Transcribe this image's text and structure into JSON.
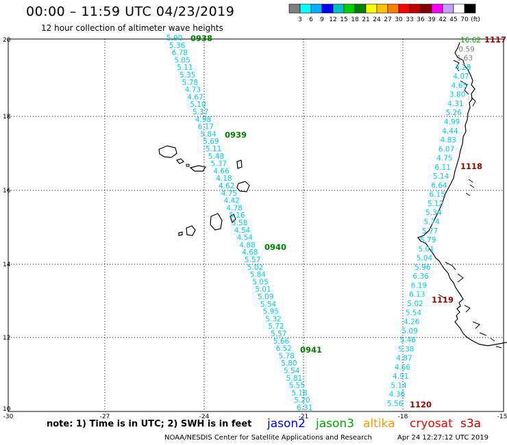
{
  "header": {
    "title": "00:00 – 11:59 UTC 04/23/2019",
    "subtitle": "12 hour collection of altimeter wave heights"
  },
  "scale": {
    "colors": [
      "#808080",
      "#00ffff",
      "#00b0ff",
      "#0000ff",
      "#00c0c0",
      "#00d000",
      "#008000",
      "#ffff00",
      "#ffc000",
      "#ff8000",
      "#ff0000",
      "#c00000",
      "#800000",
      "#ff00ff",
      "#c0a0ff",
      "#ffffff",
      "#000000"
    ],
    "labels": [
      "3",
      "6",
      "9",
      "12",
      "15",
      "18",
      "21",
      "24",
      "27",
      "30",
      "33",
      "36",
      "39",
      "42",
      "45",
      "70",
      "(ft)"
    ]
  },
  "axes": {
    "lon_labels": [
      "-30",
      "-27",
      "-24",
      "-21",
      "-18",
      "-15"
    ],
    "lat_labels": [
      "20",
      "18",
      "16",
      "14",
      "12",
      "10"
    ]
  },
  "tracks": {
    "west": [
      {
        "t": "5.90",
        "c": "#00ccee"
      },
      {
        "t": "5.36",
        "c": "#00ccee"
      },
      {
        "t": "6.78",
        "c": "#00ccee"
      },
      {
        "t": "5.05",
        "c": "#00ccee"
      },
      {
        "t": "5.11",
        "c": "#00ccee"
      },
      {
        "t": "5.35",
        "c": "#00ccee"
      },
      {
        "t": "5.78",
        "c": "#00ccee"
      },
      {
        "t": "4.73",
        "c": "#00ccee"
      },
      {
        "t": "4.67",
        "c": "#00ccee"
      },
      {
        "t": "5.10",
        "c": "#00ccee"
      },
      {
        "t": "5.37",
        "c": "#00ccee"
      },
      {
        "t": "4.98",
        "c": "#00ccee"
      },
      {
        "t": "6.17",
        "c": "#00ccee"
      },
      {
        "t": "5.84",
        "c": "#00ccee"
      },
      {
        "t": "5.69",
        "c": "#00ccee"
      },
      {
        "t": "5.11",
        "c": "#00ccee"
      },
      {
        "t": "5.48",
        "c": "#00ccee"
      },
      {
        "t": "5.37",
        "c": "#00ccee"
      },
      {
        "t": "4.66",
        "c": "#00ccee"
      },
      {
        "t": "4.18",
        "c": "#00ccee"
      },
      {
        "t": "4.62",
        "c": "#00ccee"
      },
      {
        "t": "4.75",
        "c": "#00ccee"
      },
      {
        "t": "4.42",
        "c": "#00ccee"
      },
      {
        "t": "4.78",
        "c": "#00ccee"
      },
      {
        "t": "5.16",
        "c": "#00ccee"
      },
      {
        "t": "3.58",
        "c": "#00ccee"
      },
      {
        "t": "4.54",
        "c": "#00ccee"
      },
      {
        "t": "4.54",
        "c": "#00ccee"
      },
      {
        "t": "4.88",
        "c": "#00ccee"
      },
      {
        "t": "4.68",
        "c": "#00ccee"
      },
      {
        "t": "5.57",
        "c": "#00ccee"
      },
      {
        "t": "5.02",
        "c": "#00ccee"
      },
      {
        "t": "5.84",
        "c": "#00ccee"
      },
      {
        "t": "5.05",
        "c": "#00ccee"
      },
      {
        "t": "5.01",
        "c": "#00ccee"
      },
      {
        "t": "5.09",
        "c": "#00ccee"
      },
      {
        "t": "5.54",
        "c": "#00ccee"
      },
      {
        "t": "5.95",
        "c": "#00ccee"
      },
      {
        "t": "5.32",
        "c": "#00ccee"
      },
      {
        "t": "5.72",
        "c": "#00ccee"
      },
      {
        "t": "5.57",
        "c": "#00ccee"
      },
      {
        "t": "5.66",
        "c": "#00ccee"
      },
      {
        "t": "6.52",
        "c": "#00ccee"
      },
      {
        "t": "5.78",
        "c": "#00ccee"
      },
      {
        "t": "5.80",
        "c": "#00ccee"
      },
      {
        "t": "5.54",
        "c": "#00ccee"
      },
      {
        "t": "5.81",
        "c": "#00ccee"
      },
      {
        "t": "5.55",
        "c": "#00ccee"
      },
      {
        "t": "5.18",
        "c": "#00ccee"
      },
      {
        "t": "5.20",
        "c": "#00ccee"
      },
      {
        "t": "6.31",
        "c": "#00ccee"
      }
    ],
    "west_times": [
      {
        "t": "0938",
        "c": "#008000"
      },
      {
        "t": "0939",
        "c": "#008000"
      },
      {
        "t": "0940",
        "c": "#008000"
      },
      {
        "t": "0941",
        "c": "#008000"
      }
    ],
    "east": [
      {
        "t": "16.62",
        "c": "#00b000"
      },
      {
        "t": "0.59",
        "c": "#808080"
      },
      {
        "t": "1.63",
        "c": "#808080"
      },
      {
        "t": "4.28",
        "c": "#00ccee"
      },
      {
        "t": "4.07",
        "c": "#00ccee"
      },
      {
        "t": "4.65",
        "c": "#00ccee"
      },
      {
        "t": "3.80",
        "c": "#00ccee"
      },
      {
        "t": "4.31",
        "c": "#00ccee"
      },
      {
        "t": "5.26",
        "c": "#00ccee"
      },
      {
        "t": "4.99",
        "c": "#00ccee"
      },
      {
        "t": "4.44",
        "c": "#00ccee"
      },
      {
        "t": "4.83",
        "c": "#00ccee"
      },
      {
        "t": "6.07",
        "c": "#00ccee"
      },
      {
        "t": "4.75",
        "c": "#00ccee"
      },
      {
        "t": "6.11",
        "c": "#00ccee"
      },
      {
        "t": "5.14",
        "c": "#00ccee"
      },
      {
        "t": "6.64",
        "c": "#00ccee"
      },
      {
        "t": "6.15",
        "c": "#00ccee"
      },
      {
        "t": "5.12",
        "c": "#00ccee"
      },
      {
        "t": "5.34",
        "c": "#00ccee"
      },
      {
        "t": "5.74",
        "c": "#00ccee"
      },
      {
        "t": "5.77",
        "c": "#00ccee"
      },
      {
        "t": "5.79",
        "c": "#00ccee"
      },
      {
        "t": "5.01",
        "c": "#00ccee"
      },
      {
        "t": "5.04",
        "c": "#00ccee"
      },
      {
        "t": "5.96",
        "c": "#00ccee"
      },
      {
        "t": "6.36",
        "c": "#00ccee"
      },
      {
        "t": "6.19",
        "c": "#00ccee"
      },
      {
        "t": "6.13",
        "c": "#00ccee"
      },
      {
        "t": "5.02",
        "c": "#00ccee"
      },
      {
        "t": "5.54",
        "c": "#00ccee"
      },
      {
        "t": "4.26",
        "c": "#00ccee"
      },
      {
        "t": "5.09",
        "c": "#00ccee"
      },
      {
        "t": "5.46",
        "c": "#00ccee"
      },
      {
        "t": "5.38",
        "c": "#00ccee"
      },
      {
        "t": "4.87",
        "c": "#00ccee"
      },
      {
        "t": "4.66",
        "c": "#00ccee"
      },
      {
        "t": "4.91",
        "c": "#00ccee"
      },
      {
        "t": "5.14",
        "c": "#00ccee"
      },
      {
        "t": "4.36",
        "c": "#00ccee"
      },
      {
        "t": "5.56",
        "c": "#00ccee"
      }
    ],
    "east_times": [
      {
        "t": "1117",
        "c": "#990000"
      },
      {
        "t": "1118",
        "c": "#990000"
      },
      {
        "t": "1119",
        "c": "#990000"
      },
      {
        "t": "1120",
        "c": "#990000"
      }
    ]
  },
  "footer": {
    "note": "note: 1) Time is in UTC; 2) SWH is in feet",
    "satellites": {
      "jason2": "jason2",
      "jason3": "jason3",
      "altika": "altika",
      "cryosat": "cryosat",
      "s3a": "s3a"
    },
    "credit": "NOAA/NESDIS Center for Satellite Applications and Research",
    "timestamp": "Apr 24 12:27:12 UTC 2019"
  }
}
